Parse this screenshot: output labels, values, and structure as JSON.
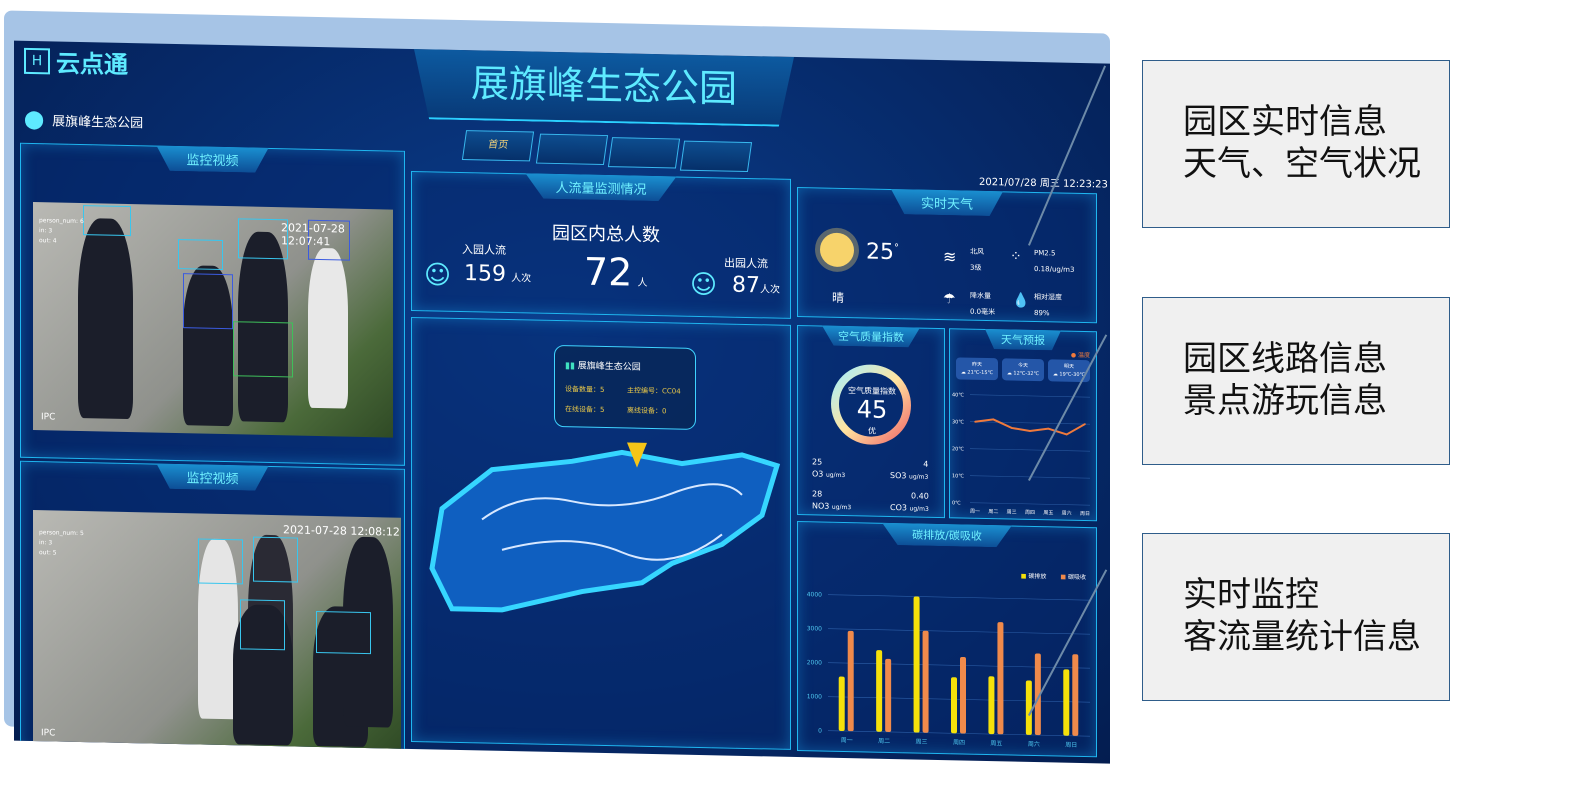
{
  "header": {
    "logo_text": "云点通",
    "title": "展旗峰生态公园",
    "location": "展旗峰生态公园",
    "datetime": "2021/07/28  周三 12:23:23",
    "nav": [
      {
        "label": "首页"
      },
      {
        "label": ""
      },
      {
        "label": ""
      },
      {
        "label": ""
      }
    ]
  },
  "videos": [
    {
      "title": "监控视频",
      "timestamp": "2021-07-28 12:07:41",
      "overlay": [
        "person_num: 6",
        "in: 3",
        "out: 4"
      ],
      "corner": "IPC"
    },
    {
      "title": "监控视频",
      "timestamp": "2021-07-28 12:08:12",
      "overlay": [
        "person_num: 5",
        "in: 3",
        "out: 5"
      ],
      "corner": "IPC"
    }
  ],
  "flow": {
    "title": "人流量监测情况",
    "total_label": "园区内总人数",
    "total": "72",
    "total_unit": "人",
    "in_label": "入园人流",
    "in_value": "159",
    "in_unit": "人次",
    "out_label": "出园人流",
    "out_value": "87",
    "out_unit": "人次"
  },
  "map": {
    "popup_title": "展旗峰生态公园",
    "devices": "设备数量：5",
    "controller": "主控编号：CC04",
    "online": "在线设备：5",
    "offline": "离线设备：0"
  },
  "weather": {
    "title": "实时天气",
    "temp": "25",
    "deg": "°",
    "condition": "晴",
    "wind_label": "北风",
    "wind_value": "3级",
    "pm_label": "PM2.5",
    "pm_value": "0.18/ug/m3",
    "rain_label": "降水量",
    "rain_value": "0.0毫米",
    "humidity_label": "相对湿度",
    "humidity_value": "89%"
  },
  "aqi": {
    "title": "空气质量指数",
    "label": "空气质量指数",
    "value": "45",
    "level": "优",
    "aqi_fraction": 0.45,
    "items": [
      {
        "value": "25",
        "name": "O3",
        "unit": "ug/m3"
      },
      {
        "value": "4",
        "name": "SO3",
        "unit": "ug/m3"
      },
      {
        "value": "28",
        "name": "NO3",
        "unit": "ug/m3"
      },
      {
        "value": "0.40",
        "name": "CO3",
        "unit": "ug/m3"
      }
    ]
  },
  "forecast": {
    "title": "天气预报",
    "legend": "温度",
    "days": [
      {
        "name": "昨天",
        "range": "21℃-15℃"
      },
      {
        "name": "今天",
        "range": "12℃-32℃"
      },
      {
        "name": "明天",
        "range": "19℃-30℃"
      }
    ],
    "chart_data": {
      "type": "line",
      "categories": [
        "周一",
        "周二",
        "周三",
        "周四",
        "周五",
        "周六",
        "周日"
      ],
      "values": [
        30,
        31,
        28,
        27,
        28,
        26,
        30
      ],
      "yticks": [
        "40℃",
        "30℃",
        "20℃",
        "10℃",
        "0℃"
      ],
      "ylim": [
        0,
        40
      ],
      "color": "#f07a3c",
      "grid": true
    }
  },
  "carbon": {
    "title": "碳排放/碳吸收",
    "chart_data": {
      "type": "bar",
      "categories": [
        "周一",
        "周二",
        "周三",
        "周四",
        "周五",
        "周六",
        "周日"
      ],
      "series": [
        {
          "name": "碳排放",
          "color": "#f5e10a",
          "values": [
            1600,
            2400,
            4000,
            1650,
            1700,
            1600,
            1950
          ]
        },
        {
          "name": "碳吸收",
          "color": "#f08a4b",
          "values": [
            2950,
            2150,
            3000,
            2250,
            3300,
            2400,
            2400
          ]
        }
      ],
      "yticks": [
        "4000",
        "3000",
        "2000",
        "1000",
        "0"
      ],
      "ylim": [
        0,
        4000
      ],
      "legend": "top-right",
      "grid": true
    }
  },
  "annotations": [
    {
      "lines": [
        "园区实时信息",
        "天气、空气状况"
      ]
    },
    {
      "lines": [
        "园区线路信息",
        "景点游玩信息"
      ]
    },
    {
      "lines": [
        "实时监控",
        "客流量统计信息"
      ]
    }
  ]
}
